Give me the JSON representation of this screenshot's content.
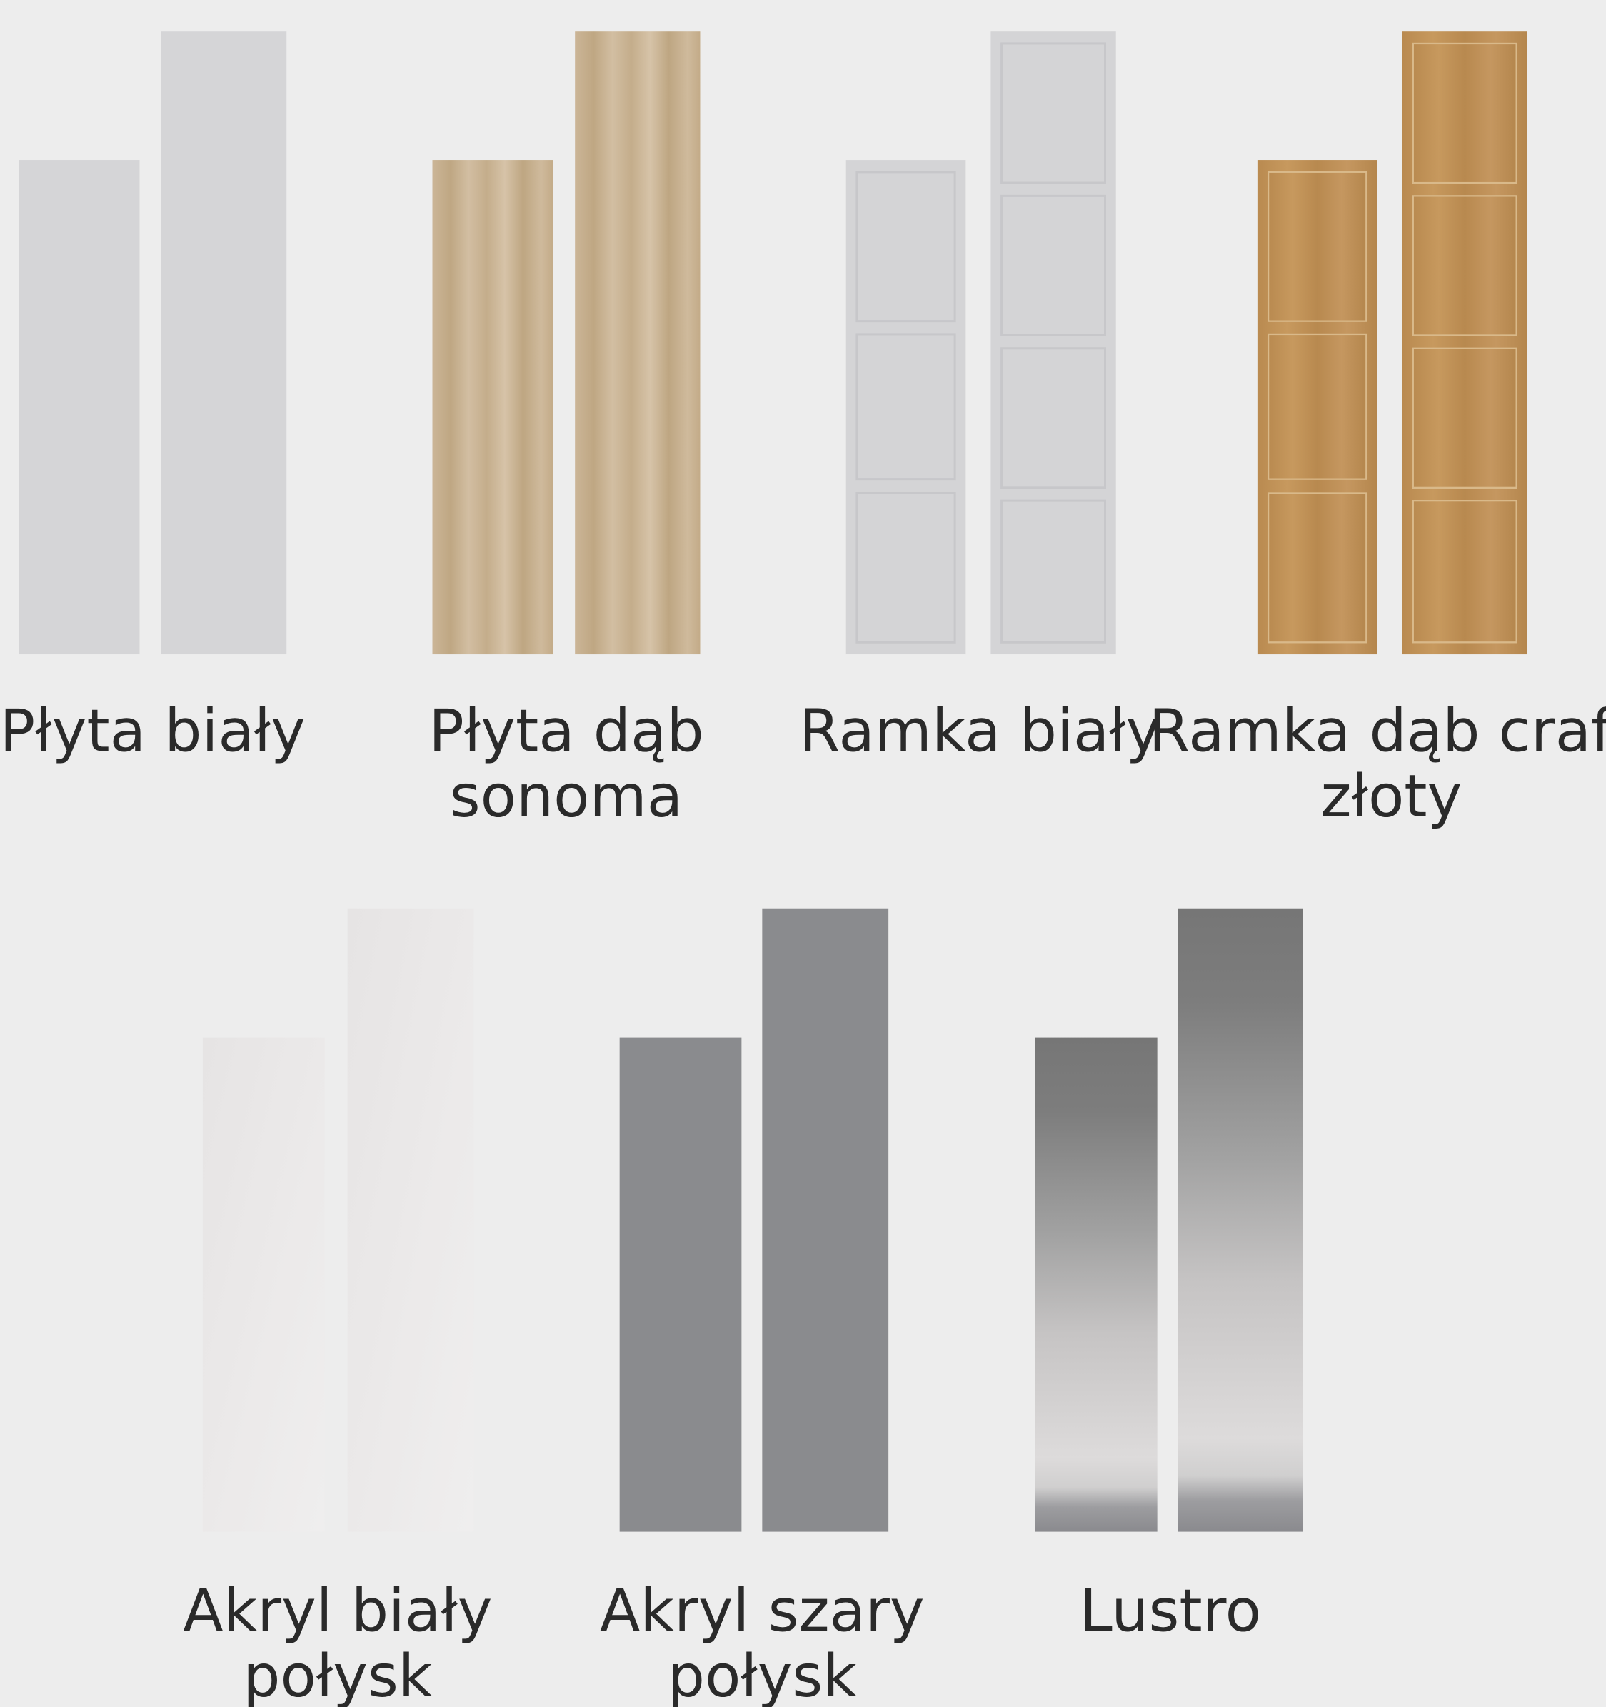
{
  "items": [
    {
      "lines": [
        "Płyta biały"
      ]
    },
    {
      "lines": [
        "Płyta dąb",
        "sonoma"
      ]
    },
    {
      "lines": [
        "Ramka biały"
      ]
    },
    {
      "lines": [
        "Ramka dąb craft",
        "złoty"
      ]
    },
    {
      "lines": [
        "Akryl biały",
        "połysk"
      ]
    },
    {
      "lines": [
        "Akryl szary",
        "połysk"
      ]
    },
    {
      "lines": [
        "Lustro"
      ]
    }
  ]
}
